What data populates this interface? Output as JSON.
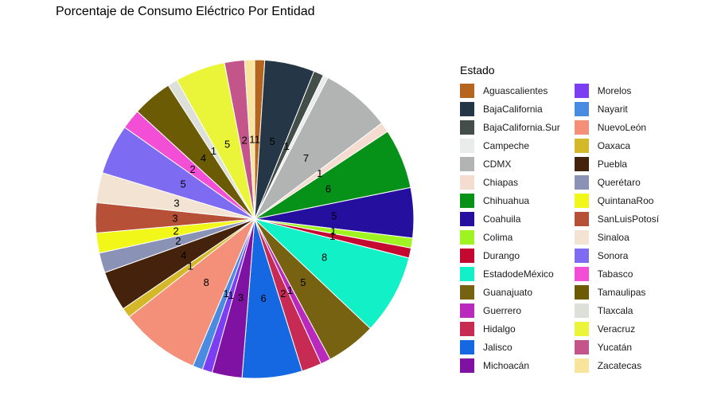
{
  "chart_data": {
    "type": "pie",
    "title": "Porcentaje de Consumo Eléctrico Por Entidad",
    "legend_title": "Estado",
    "legend_position": "right",
    "slices": [
      {
        "name": "Aguascalientes",
        "value": 1,
        "color": "#B5651D"
      },
      {
        "name": "BajaCalifornia",
        "value": 5,
        "color": "#253746"
      },
      {
        "name": "BajaCalifornia.Sur",
        "value": 1,
        "color": "#434E4A"
      },
      {
        "name": "Campeche",
        "value": 0.5,
        "color": "#E8ECEA"
      },
      {
        "name": "CDMX",
        "value": 7,
        "color": "#B2B4B4"
      },
      {
        "name": "Chiapas",
        "value": 1,
        "color": "#F5DCD0"
      },
      {
        "name": "Chihuahua",
        "value": 6,
        "color": "#069118"
      },
      {
        "name": "Coahuila",
        "value": 5,
        "color": "#250F9E"
      },
      {
        "name": "Colima",
        "value": 1,
        "color": "#9EF321"
      },
      {
        "name": "Durango",
        "value": 1,
        "color": "#C4082F"
      },
      {
        "name": "EstadodeMéxico",
        "value": 8,
        "color": "#12F0C8"
      },
      {
        "name": "Guanajuato",
        "value": 5,
        "color": "#776211"
      },
      {
        "name": "Guerrero",
        "value": 1,
        "color": "#B929BC"
      },
      {
        "name": "Hidalgo",
        "value": 2,
        "color": "#C72B54"
      },
      {
        "name": "Jalisco",
        "value": 6,
        "color": "#1568E1"
      },
      {
        "name": "Michoacán",
        "value": 3,
        "color": "#7F12A2"
      },
      {
        "name": "Morelos",
        "value": 1,
        "color": "#7B3EF2"
      },
      {
        "name": "Nayarit",
        "value": 1,
        "color": "#4A8BE2"
      },
      {
        "name": "NuevoLeón",
        "value": 8,
        "color": "#F4907A"
      },
      {
        "name": "Oaxaca",
        "value": 1,
        "color": "#D4B82A"
      },
      {
        "name": "Puebla",
        "value": 4,
        "color": "#45220B"
      },
      {
        "name": "Querétaro",
        "value": 2,
        "color": "#8A92B5"
      },
      {
        "name": "QuintanaRoo",
        "value": 2,
        "color": "#F1F719"
      },
      {
        "name": "SanLuisPotosí",
        "value": 3,
        "color": "#B65036"
      },
      {
        "name": "Sinaloa",
        "value": 3,
        "color": "#F2E3D2"
      },
      {
        "name": "Sonora",
        "value": 5,
        "color": "#7D6CF2"
      },
      {
        "name": "Tabasco",
        "value": 2,
        "color": "#F24FD6"
      },
      {
        "name": "Tamaulipas",
        "value": 4,
        "color": "#6B5B04"
      },
      {
        "name": "Tlaxcala",
        "value": 1,
        "color": "#DCE0D9"
      },
      {
        "name": "Veracruz",
        "value": 5,
        "color": "#EAF53A"
      },
      {
        "name": "Yucatán",
        "value": 2,
        "color": "#C3558A"
      },
      {
        "name": "Zacatecas",
        "value": 1,
        "color": "#F8E49C"
      }
    ],
    "labels": [
      {
        "slice": "Aguascalientes",
        "text": "1"
      },
      {
        "slice": "BajaCalifornia",
        "text": "5"
      },
      {
        "slice": "BajaCalifornia.Sur",
        "text": "1"
      },
      {
        "slice": "CDMX",
        "text": "7"
      },
      {
        "slice": "Chiapas",
        "text": "1"
      },
      {
        "slice": "Chihuahua",
        "text": "6"
      },
      {
        "slice": "Coahuila",
        "text": "5"
      },
      {
        "slice": "Colima",
        "text": "1"
      },
      {
        "slice": "Durango",
        "text": "1"
      },
      {
        "slice": "EstadodeMéxico",
        "text": "8"
      },
      {
        "slice": "Guanajuato",
        "text": "5"
      },
      {
        "slice": "Guerrero",
        "text": "1"
      },
      {
        "slice": "Hidalgo",
        "text": "2"
      },
      {
        "slice": "Jalisco",
        "text": "6"
      },
      {
        "slice": "Michoacán",
        "text": "3"
      },
      {
        "slice": "Morelos",
        "text": "1"
      },
      {
        "slice": "Nayarit",
        "text": "1"
      },
      {
        "slice": "NuevoLeón",
        "text": "8"
      },
      {
        "slice": "Oaxaca",
        "text": "1"
      },
      {
        "slice": "Puebla",
        "text": "4"
      },
      {
        "slice": "Querétaro",
        "text": "2"
      },
      {
        "slice": "QuintanaRoo",
        "text": "2"
      },
      {
        "slice": "SanLuisPotosí",
        "text": "3"
      },
      {
        "slice": "Sinaloa",
        "text": "3"
      },
      {
        "slice": "Sonora",
        "text": "5"
      },
      {
        "slice": "Tabasco",
        "text": "2"
      },
      {
        "slice": "Tamaulipas",
        "text": "4"
      },
      {
        "slice": "Tlaxcala",
        "text": "1"
      },
      {
        "slice": "Veracruz",
        "text": "5"
      },
      {
        "slice": "Yucatán",
        "text": "2"
      },
      {
        "slice": "Zacatecas",
        "text": "1"
      }
    ]
  }
}
